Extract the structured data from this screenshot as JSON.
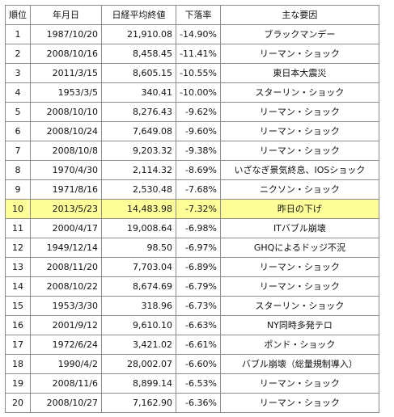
{
  "table": {
    "headers": {
      "rank": "順位",
      "date": "年月日",
      "close": "日経平均終値",
      "decline": "下落率",
      "cause": "主な要因"
    },
    "highlight_color": "#ffff99",
    "highlight_rank": "10",
    "rows": [
      {
        "rank": "1",
        "date": "1987/10/20",
        "close": "21,910.08",
        "decline": "-14.90%",
        "cause": "ブラックマンデー"
      },
      {
        "rank": "2",
        "date": "2008/10/16",
        "close": "8,458.45",
        "decline": "-11.41%",
        "cause": "リーマン・ショック"
      },
      {
        "rank": "3",
        "date": "2011/3/15",
        "close": "8,605.15",
        "decline": "-10.55%",
        "cause": "東日本大震災"
      },
      {
        "rank": "4",
        "date": "1953/3/5",
        "close": "340.41",
        "decline": "-10.00%",
        "cause": "スターリン・ショック"
      },
      {
        "rank": "5",
        "date": "2008/10/10",
        "close": "8,276.43",
        "decline": "-9.62%",
        "cause": "リーマン・ショック"
      },
      {
        "rank": "6",
        "date": "2008/10/24",
        "close": "7,649.08",
        "decline": "-9.60%",
        "cause": "リーマン・ショック"
      },
      {
        "rank": "7",
        "date": "2008/10/8",
        "close": "9,203.32",
        "decline": "-9.38%",
        "cause": "リーマン・ショック"
      },
      {
        "rank": "8",
        "date": "1970/4/30",
        "close": "2,114.32",
        "decline": "-8.69%",
        "cause": "いざなぎ景気終息、IOSショック"
      },
      {
        "rank": "9",
        "date": "1971/8/16",
        "close": "2,530.48",
        "decline": "-7.68%",
        "cause": "ニクソン・ショック"
      },
      {
        "rank": "10",
        "date": "2013/5/23",
        "close": "14,483.98",
        "decline": "-7.32%",
        "cause": "昨日の下げ"
      },
      {
        "rank": "11",
        "date": "2000/4/17",
        "close": "19,008.64",
        "decline": "-6.98%",
        "cause": "ITバブル崩壊"
      },
      {
        "rank": "12",
        "date": "1949/12/14",
        "close": "98.50",
        "decline": "-6.97%",
        "cause": "GHQによるドッジ不況"
      },
      {
        "rank": "13",
        "date": "2008/11/20",
        "close": "7,703.04",
        "decline": "-6.89%",
        "cause": "リーマン・ショック"
      },
      {
        "rank": "14",
        "date": "2008/10/22",
        "close": "8,674.69",
        "decline": "-6.79%",
        "cause": "リーマン・ショック"
      },
      {
        "rank": "15",
        "date": "1953/3/30",
        "close": "318.96",
        "decline": "-6.73%",
        "cause": "スターリン・ショック"
      },
      {
        "rank": "16",
        "date": "2001/9/12",
        "close": "9,610.10",
        "decline": "-6.63%",
        "cause": "NY同時多発テロ"
      },
      {
        "rank": "17",
        "date": "1972/6/24",
        "close": "3,421.02",
        "decline": "-6.61%",
        "cause": "ポンド・ショック"
      },
      {
        "rank": "18",
        "date": "1990/4/2",
        "close": "28,002.07",
        "decline": "-6.60%",
        "cause": "バブル崩壊（総量規制導入）"
      },
      {
        "rank": "19",
        "date": "2008/11/6",
        "close": "8,899.14",
        "decline": "-6.53%",
        "cause": "リーマン・ショック"
      },
      {
        "rank": "20",
        "date": "2008/10/27",
        "close": "7,162.90",
        "decline": "-6.36%",
        "cause": "リーマン・ショック"
      }
    ]
  }
}
